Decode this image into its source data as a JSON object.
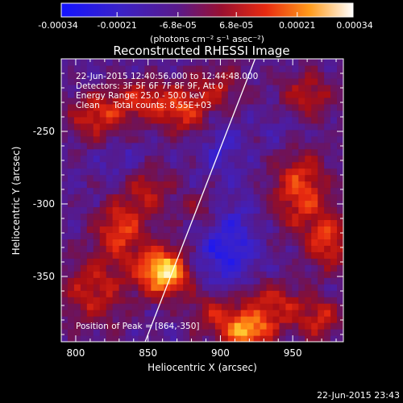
{
  "chart_data": {
    "type": "heatmap",
    "title": "Reconstructed RHESSI Image",
    "xlabel": "Heliocentric X (arcsec)",
    "ylabel": "Heliocentric Y (arcsec)",
    "x_ticks": [
      800,
      850,
      900,
      950
    ],
    "y_ticks": [
      -250,
      -300,
      -350
    ],
    "xlim": [
      790,
      985
    ],
    "ylim": [
      -395,
      -200
    ],
    "colorbar": {
      "tick_labels": [
        "-0.00034",
        "-0.00021",
        "-6.8e-05",
        "6.8e-05",
        "0.00021",
        "0.00034"
      ],
      "tick_values": [
        -0.00034,
        -0.00021,
        -6.8e-05,
        6.8e-05,
        0.00021,
        0.00034
      ],
      "range": [
        -0.00034,
        0.00034
      ],
      "units_label": "(photons cm⁻² s⁻¹ asec⁻²)",
      "colormap": "blue-purple-red-yellow-white"
    },
    "annotations": [
      "22-Jun-2015 12:40:56.000 to 12:44:48.000",
      "Detectors: 3F 5F 6F 7F 8F 9F, Att 0",
      "Energy Range: 25.0 - 50.0 keV",
      "Clean     Total counts: 8.55E+03"
    ],
    "peak_label": "Position of Peak = [864,-350]",
    "peak": {
      "x": 864,
      "y": -350
    },
    "limb_line": [
      {
        "x": 848,
        "y": -395
      },
      {
        "x": 924,
        "y": -200
      }
    ],
    "hot_spots": [
      {
        "x": 862,
        "y": -346,
        "sx": 14,
        "sy": 12,
        "amp": 1.0
      },
      {
        "x": 830,
        "y": -318,
        "sx": 12,
        "sy": 14,
        "amp": 0.55
      },
      {
        "x": 812,
        "y": -360,
        "sx": 16,
        "sy": 18,
        "amp": 0.45
      },
      {
        "x": 815,
        "y": -240,
        "sx": 14,
        "sy": 12,
        "amp": 0.5
      },
      {
        "x": 845,
        "y": -228,
        "sx": 14,
        "sy": 10,
        "amp": 0.45
      },
      {
        "x": 875,
        "y": -235,
        "sx": 14,
        "sy": 12,
        "amp": 0.55
      },
      {
        "x": 850,
        "y": -290,
        "sx": 12,
        "sy": 14,
        "amp": 0.4
      },
      {
        "x": 955,
        "y": -290,
        "sx": 14,
        "sy": 20,
        "amp": 0.6
      },
      {
        "x": 975,
        "y": -325,
        "sx": 10,
        "sy": 14,
        "amp": 0.55
      },
      {
        "x": 960,
        "y": -225,
        "sx": 14,
        "sy": 12,
        "amp": 0.4
      },
      {
        "x": 935,
        "y": -370,
        "sx": 18,
        "sy": 12,
        "amp": 0.5
      },
      {
        "x": 918,
        "y": -388,
        "sx": 12,
        "sy": 8,
        "amp": 0.75
      },
      {
        "x": 895,
        "y": -375,
        "sx": 12,
        "sy": 10,
        "amp": 0.4
      },
      {
        "x": 888,
        "y": -305,
        "sx": 10,
        "sy": 10,
        "amp": 0.3
      },
      {
        "x": 970,
        "y": -380,
        "sx": 10,
        "sy": 10,
        "amp": 0.45
      },
      {
        "x": 900,
        "y": -218,
        "sx": 12,
        "sy": 10,
        "amp": 0.35
      }
    ],
    "cold_spots": [
      {
        "x": 905,
        "y": -330,
        "sx": 14,
        "sy": 22,
        "amp": 0.75
      },
      {
        "x": 900,
        "y": -260,
        "sx": 10,
        "sy": 14,
        "amp": 0.45
      },
      {
        "x": 835,
        "y": -270,
        "sx": 14,
        "sy": 10,
        "amp": 0.35
      },
      {
        "x": 880,
        "y": -340,
        "sx": 10,
        "sy": 10,
        "amp": 0.35
      },
      {
        "x": 945,
        "y": -250,
        "sx": 10,
        "sy": 12,
        "amp": 0.3
      }
    ]
  },
  "footer": {
    "timestamp": "22-Jun-2015 23:43"
  }
}
